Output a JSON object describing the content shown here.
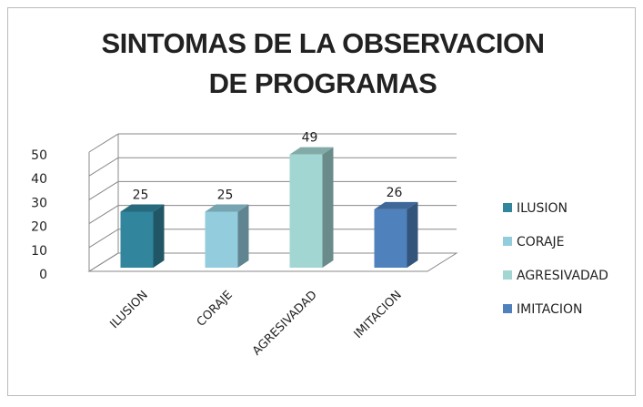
{
  "chart_data": {
    "type": "bar3d",
    "title": "SINTOMAS DE LA OBSERVACION DE PROGRAMAS",
    "categories": [
      "ILUSION",
      "CORAJE",
      "AGRESIVADAD",
      "IMITACION"
    ],
    "values": [
      25,
      25,
      49,
      26
    ],
    "colors": [
      "#31859c",
      "#93cddd",
      "#a2d6d2",
      "#4f81bd"
    ],
    "ylim": [
      0,
      50
    ],
    "yticks": [
      0,
      10,
      20,
      30,
      40,
      50
    ],
    "grid": true,
    "legend": "right",
    "data_labels": true
  }
}
